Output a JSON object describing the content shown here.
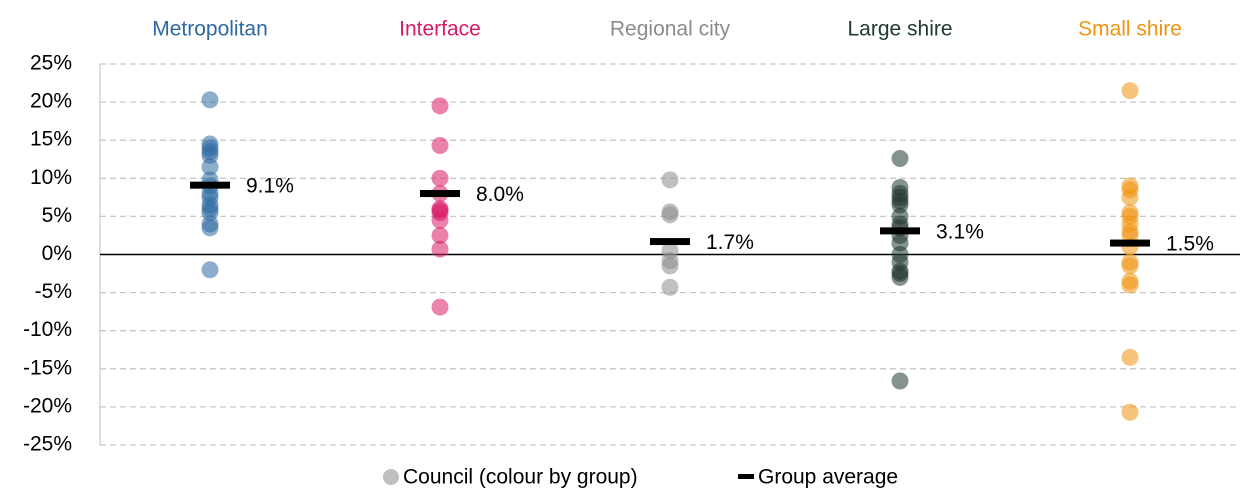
{
  "chart_data": {
    "type": "strip",
    "series": [
      {
        "name": "Metropolitan",
        "color": "#2e6aa1",
        "values": [
          20.3,
          14.5,
          14,
          13.5,
          13,
          11.5,
          9.8,
          9,
          8,
          7.5,
          6.5,
          6,
          5.5,
          4,
          3.5,
          -2
        ],
        "average": 9.1,
        "average_label": "9.1%"
      },
      {
        "name": "Interface",
        "color": "#d81b66",
        "values": [
          19.5,
          14.3,
          10,
          8,
          6,
          5.8,
          5.5,
          4.5,
          2.5,
          0.7,
          -6.9
        ],
        "average": 8.0,
        "average_label": "8.0%"
      },
      {
        "name": "Regional city",
        "color": "#8c8c8c",
        "values": [
          9.8,
          5.6,
          5.2,
          0.5,
          -0.8,
          -1.5,
          -4.3
        ],
        "average": 1.7,
        "average_label": "1.7%"
      },
      {
        "name": "Large shire",
        "color": "#21392f",
        "values": [
          12.6,
          8.8,
          8,
          7.5,
          7,
          6.5,
          5,
          4,
          3.5,
          2.5,
          1.5,
          0,
          -1,
          -2.2,
          -2.5,
          -3,
          -16.6
        ],
        "average": 3.1,
        "average_label": "3.1%"
      },
      {
        "name": "Small shire",
        "color": "#f0930f",
        "values": [
          21.5,
          9,
          8.5,
          7.5,
          5.5,
          5,
          4,
          3,
          2.5,
          1,
          -1,
          -1.5,
          -3.5,
          -4,
          -13.5,
          -20.7
        ],
        "average": 1.5,
        "average_label": "1.5%"
      }
    ],
    "ylim": [
      -25,
      25
    ],
    "yticks": [
      {
        "value": 25,
        "label": "25%"
      },
      {
        "value": 20,
        "label": "20%"
      },
      {
        "value": 15,
        "label": "15%"
      },
      {
        "value": 10,
        "label": "10%"
      },
      {
        "value": 5,
        "label": "5%"
      },
      {
        "value": 0,
        "label": "0%"
      },
      {
        "value": -5,
        "label": "-5%"
      },
      {
        "value": -10,
        "label": "-10%"
      },
      {
        "value": -15,
        "label": "-15%"
      },
      {
        "value": -20,
        "label": "-20%"
      },
      {
        "value": -25,
        "label": "-25%"
      }
    ],
    "grid": true,
    "legend": [
      "Council (colour by group)",
      "Group average"
    ]
  }
}
